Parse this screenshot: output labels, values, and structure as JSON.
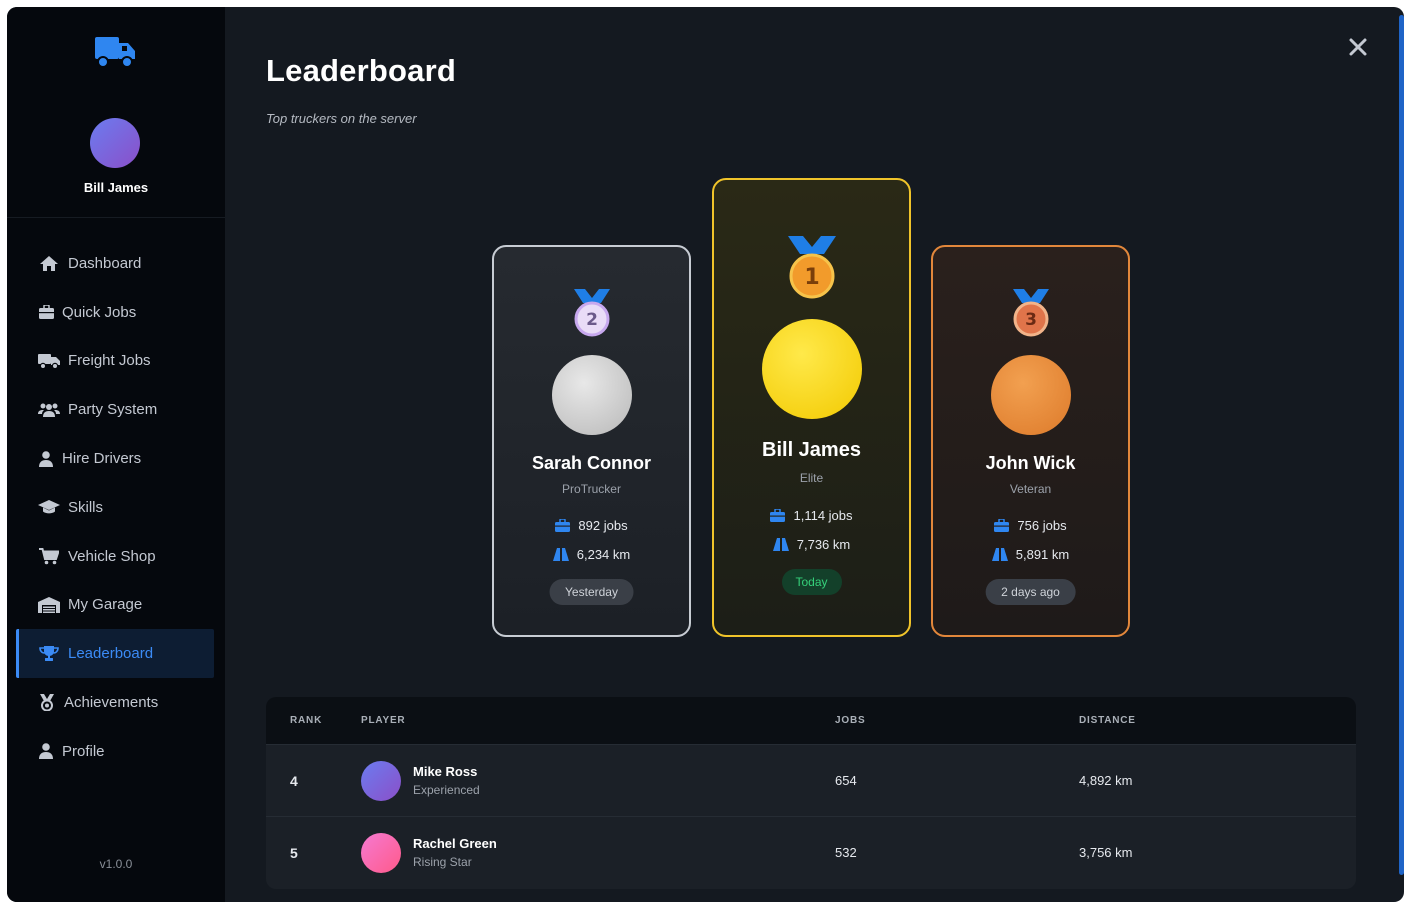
{
  "sidebar": {
    "user_name": "Bill James",
    "version": "v1.0.0",
    "items": [
      {
        "label": "Dashboard",
        "icon": "home-icon"
      },
      {
        "label": "Quick Jobs",
        "icon": "briefcase-icon"
      },
      {
        "label": "Freight Jobs",
        "icon": "truck-icon"
      },
      {
        "label": "Party System",
        "icon": "users-icon"
      },
      {
        "label": "Hire Drivers",
        "icon": "user-tie-icon"
      },
      {
        "label": "Skills",
        "icon": "graduation-cap-icon"
      },
      {
        "label": "Vehicle Shop",
        "icon": "cart-icon"
      },
      {
        "label": "My Garage",
        "icon": "warehouse-icon"
      },
      {
        "label": "Leaderboard",
        "icon": "trophy-icon",
        "active": true
      },
      {
        "label": "Achievements",
        "icon": "medal-icon"
      },
      {
        "label": "Profile",
        "icon": "user-icon"
      }
    ]
  },
  "header": {
    "title": "Leaderboard",
    "subtitle": "Top truckers on the server"
  },
  "podium": {
    "first": {
      "rank": "1",
      "name": "Bill James",
      "title": "Elite",
      "jobs": "1,114 jobs",
      "distance": "7,736 km",
      "last_active": "Today"
    },
    "second": {
      "rank": "2",
      "name": "Sarah Connor",
      "title": "ProTrucker",
      "jobs": "892 jobs",
      "distance": "6,234 km",
      "last_active": "Yesterday"
    },
    "third": {
      "rank": "3",
      "name": "John Wick",
      "title": "Veteran",
      "jobs": "756 jobs",
      "distance": "5,891 km",
      "last_active": "2 days ago"
    }
  },
  "table": {
    "headers": {
      "rank": "RANK",
      "player": "PLAYER",
      "jobs": "JOBS",
      "distance": "DISTANCE"
    },
    "rows": [
      {
        "rank": "4",
        "name": "Mike Ross",
        "title": "Experienced",
        "jobs": "654",
        "distance": "4,892 km"
      },
      {
        "rank": "5",
        "name": "Rachel Green",
        "title": "Rising Star",
        "jobs": "532",
        "distance": "3,756 km"
      }
    ]
  },
  "colors": {
    "accent": "#3b8bf6",
    "gold": "#f0c42a",
    "silver": "#c7ccd3",
    "bronze": "#e2873b",
    "active_green": "#35d07a"
  }
}
